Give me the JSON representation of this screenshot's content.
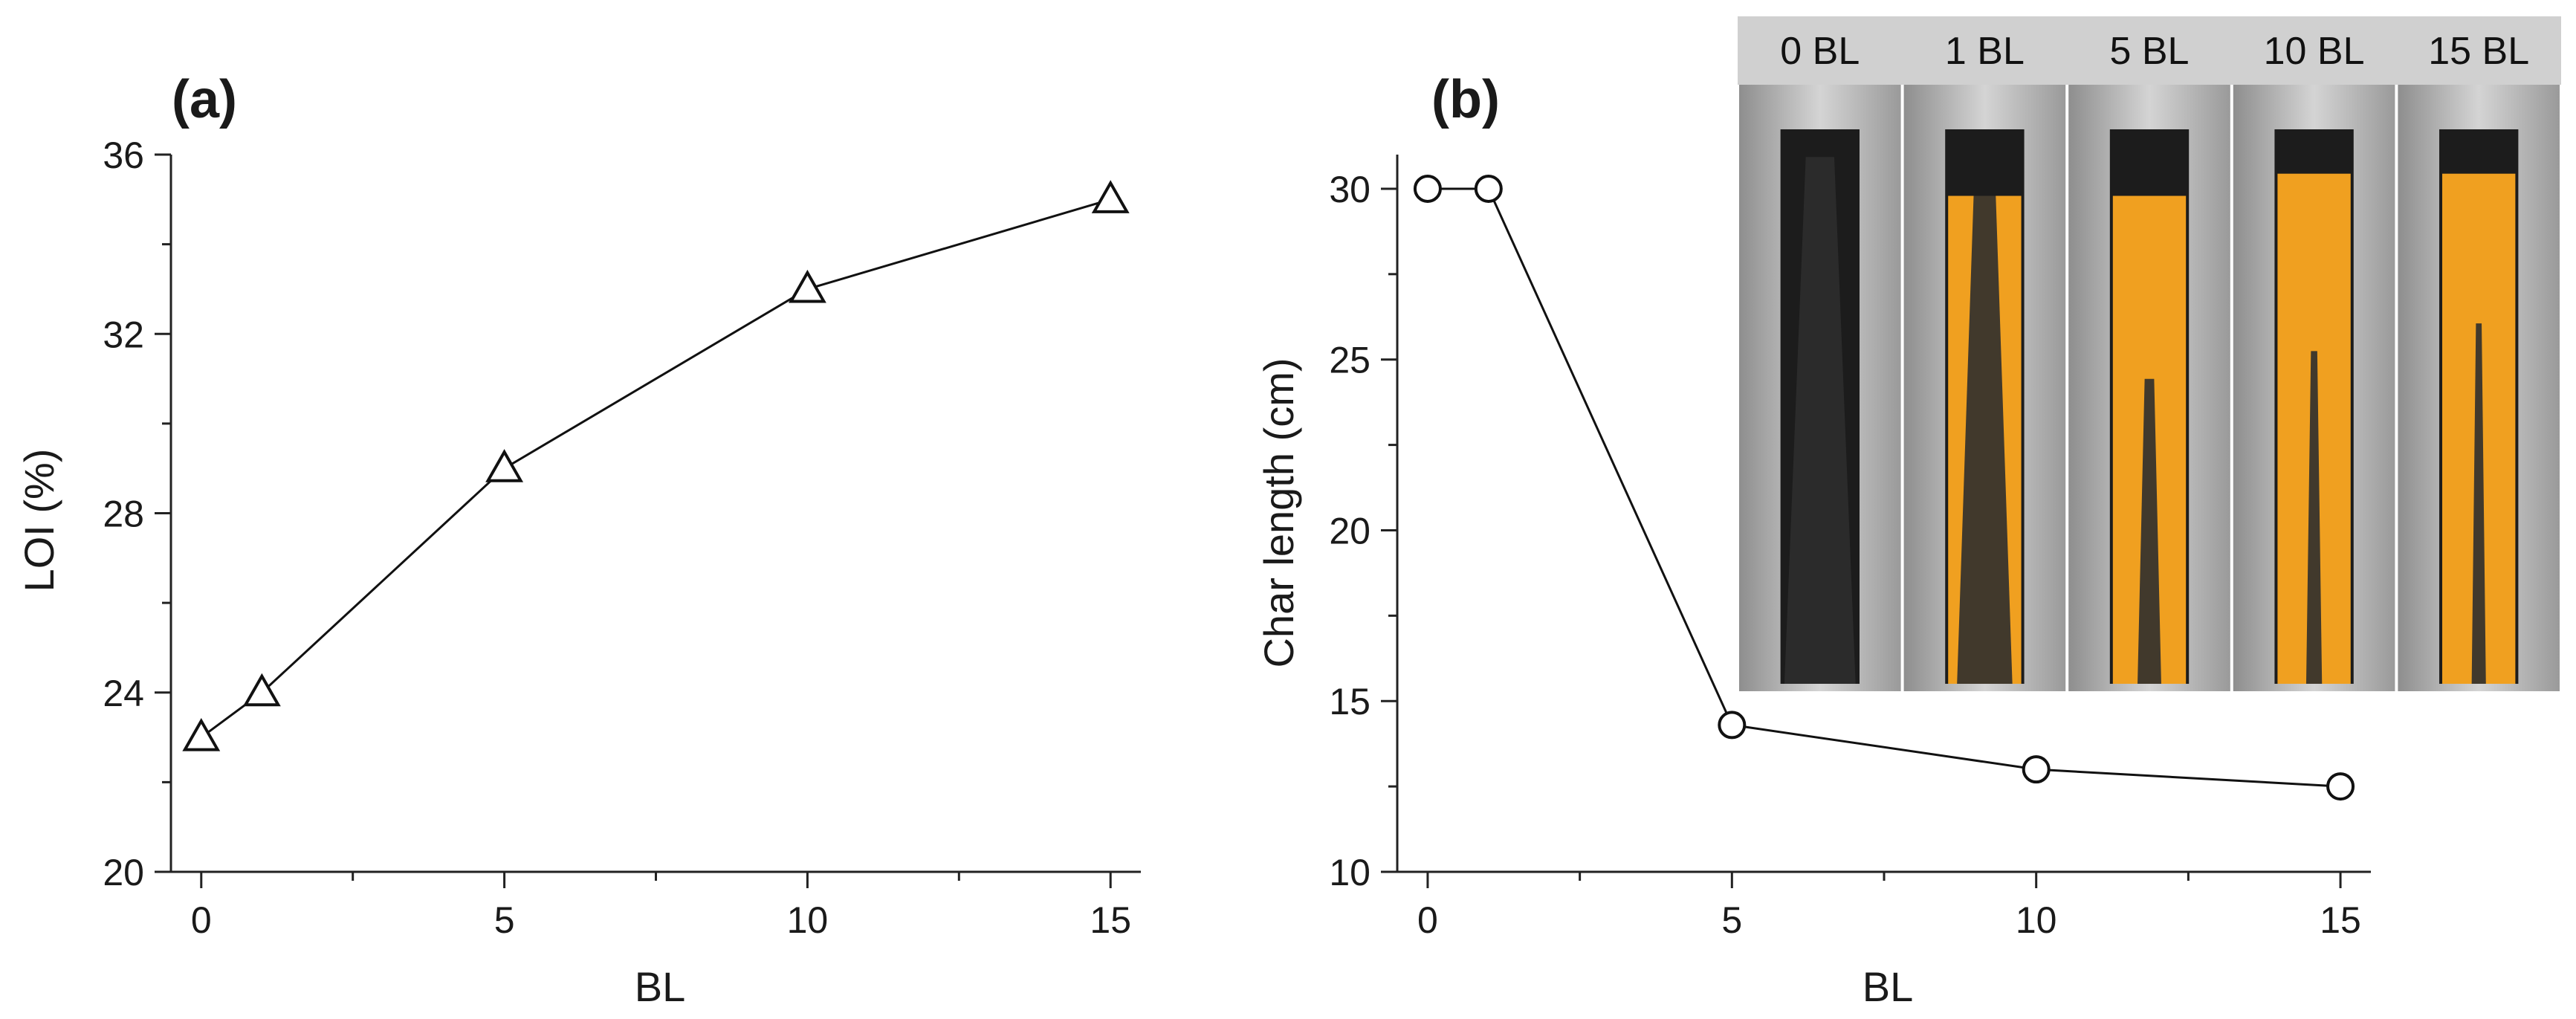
{
  "chart_data": [
    {
      "type": "line",
      "panel_label": "(a)",
      "x": [
        0,
        1,
        5,
        10,
        15
      ],
      "series": [
        {
          "values": [
            23,
            24,
            29,
            33,
            35
          ],
          "marker": "triangle-open"
        }
      ],
      "xlabel": "BL",
      "ylabel": "LOI (%)",
      "xlim": [
        -0.5,
        15.5
      ],
      "ylim": [
        20,
        36
      ],
      "xticks": [
        "0",
        "5",
        "10",
        "15"
      ],
      "yticks": [
        "20",
        "24",
        "28",
        "32",
        "36"
      ],
      "grid": false
    },
    {
      "type": "line",
      "panel_label": "(b)",
      "x": [
        0,
        1,
        5,
        10,
        15
      ],
      "series": [
        {
          "values": [
            30,
            30,
            14.3,
            13.0,
            12.5
          ],
          "marker": "circle-open"
        }
      ],
      "xlabel": "BL",
      "ylabel": "Char length (cm)",
      "xlim": [
        -0.5,
        15.5
      ],
      "ylim": [
        10,
        31
      ],
      "xticks": [
        "0",
        "5",
        "10",
        "15"
      ],
      "yticks": [
        "10",
        "15",
        "20",
        "25",
        "30"
      ],
      "grid": false,
      "inset_photos": {
        "labels": [
          "0 BL",
          "1 BL",
          "5 BL",
          "10 BL",
          "15 BL"
        ],
        "fabric_color": "#f0a020",
        "char_color": "#2e2e2e",
        "frame_color": "#b4b4b4",
        "header_color": "#d0d0d0"
      }
    }
  ]
}
